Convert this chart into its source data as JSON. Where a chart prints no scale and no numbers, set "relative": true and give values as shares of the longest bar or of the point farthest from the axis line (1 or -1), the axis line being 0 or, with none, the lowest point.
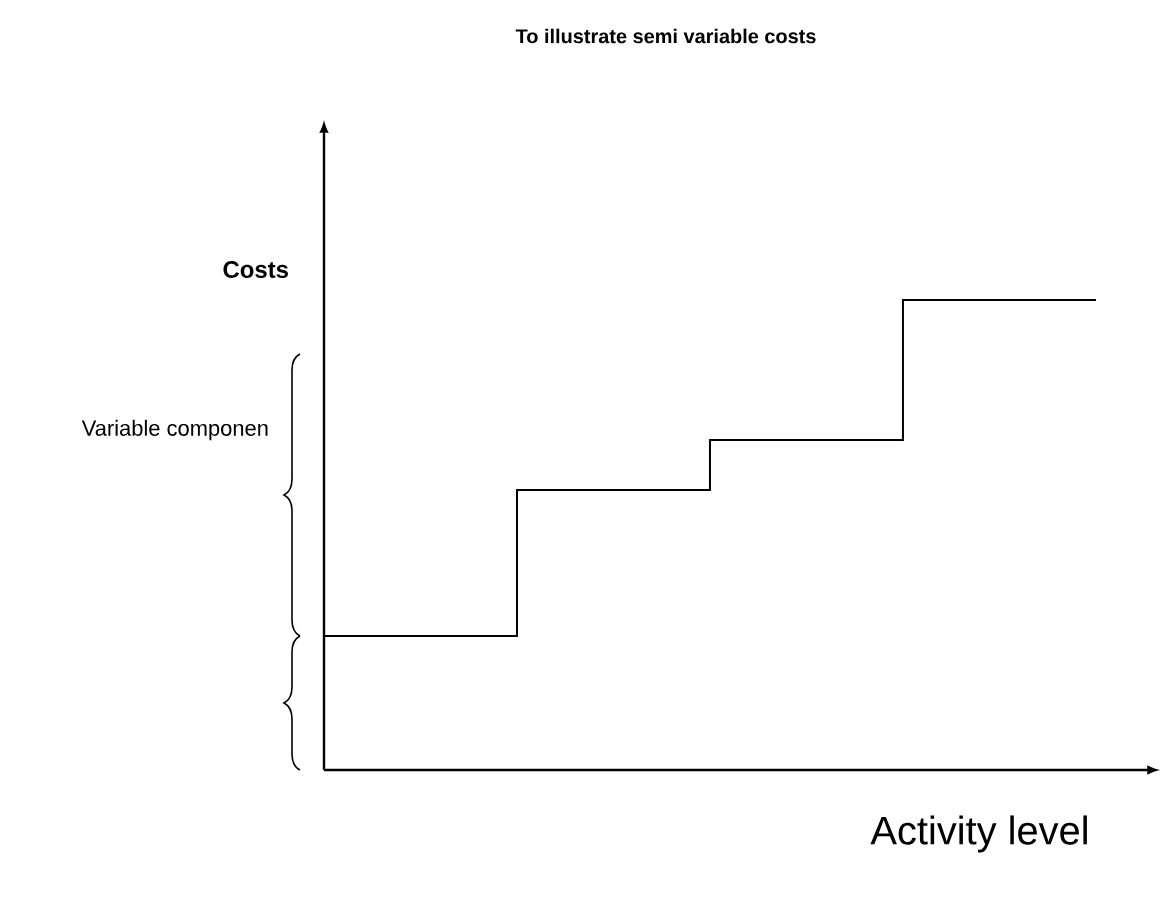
{
  "chart_data": {
    "type": "step",
    "title": "To illustrate semi variable costs",
    "xlabel": "Activity level",
    "ylabel": "Costs",
    "categories": [
      null,
      null,
      null,
      null,
      null
    ],
    "values": [
      0.285,
      0.596,
      0.702,
      1,
      1
    ],
    "color": "#000000",
    "relative": true,
    "annotations": [
      "Variable componen"
    ]
  }
}
